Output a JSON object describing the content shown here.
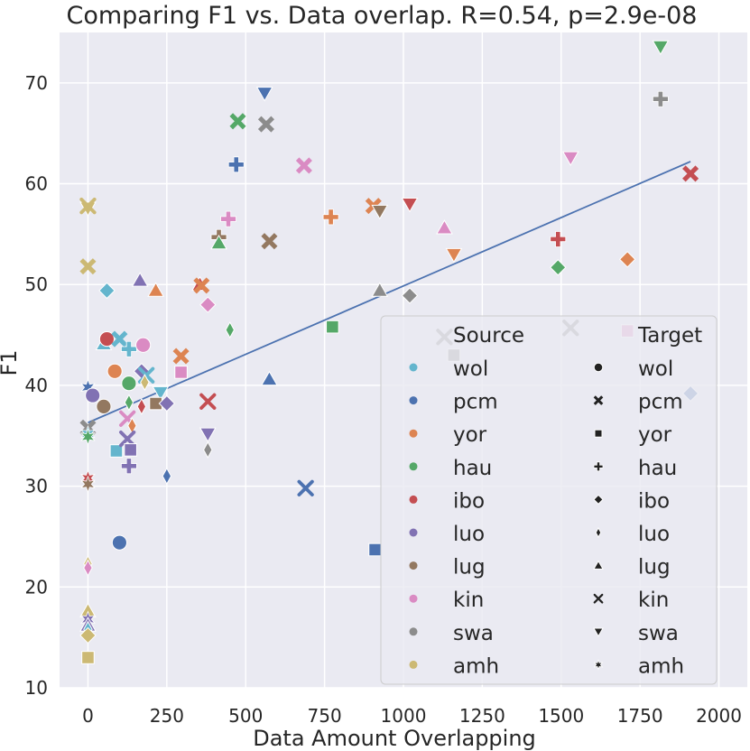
{
  "chart_data": {
    "type": "scatter",
    "title": "Comparing F1 vs. Data overlap. R=0.54, p=2.9e-08",
    "xlabel": "Data Amount Overlapping",
    "ylabel": "F1",
    "xlim": [
      -90,
      2090
    ],
    "ylim": [
      10,
      75
    ],
    "xticks": [
      0,
      250,
      500,
      750,
      1000,
      1250,
      1500,
      1750,
      2000
    ],
    "yticks": [
      10,
      20,
      30,
      40,
      50,
      60,
      70
    ],
    "xtick_labels": [
      "0",
      "250",
      "500",
      "750",
      "1000",
      "1250",
      "1500",
      "1750",
      "2000"
    ],
    "ytick_labels": [
      "10",
      "20",
      "30",
      "40",
      "50",
      "60",
      "70"
    ],
    "grid": true,
    "legend_position": "lower-right",
    "regression_line": {
      "x": [
        0,
        1910
      ],
      "y": [
        36.3,
        62.2
      ],
      "color": "#4c72b0"
    },
    "legend": {
      "source_title": "Source",
      "target_title": "Target",
      "source": [
        {
          "label": "wol",
          "color": "#64b5cd"
        },
        {
          "label": "pcm",
          "color": "#4c72b0"
        },
        {
          "label": "yor",
          "color": "#dd8452"
        },
        {
          "label": "hau",
          "color": "#55a868"
        },
        {
          "label": "ibo",
          "color": "#c44e52"
        },
        {
          "label": "luo",
          "color": "#8172b3"
        },
        {
          "label": "lug",
          "color": "#937860"
        },
        {
          "label": "kin",
          "color": "#da8bc3"
        },
        {
          "label": "swa",
          "color": "#8c8c8c"
        },
        {
          "label": "amh",
          "color": "#ccb974"
        }
      ],
      "target": [
        {
          "label": "wol",
          "marker": "circle"
        },
        {
          "label": "pcm",
          "marker": "x"
        },
        {
          "label": "yor",
          "marker": "square"
        },
        {
          "label": "hau",
          "marker": "plus"
        },
        {
          "label": "ibo",
          "marker": "diamond"
        },
        {
          "label": "luo",
          "marker": "thin-diamond"
        },
        {
          "label": "lug",
          "marker": "triangle-up"
        },
        {
          "label": "kin",
          "marker": "tri-x"
        },
        {
          "label": "swa",
          "marker": "triangle-down"
        },
        {
          "label": "amh",
          "marker": "star"
        }
      ]
    },
    "points": [
      {
        "x": 0,
        "y": 57.6,
        "source": "amh",
        "target": "swa"
      },
      {
        "x": 0,
        "y": 57.8,
        "source": "amh",
        "target": "kin"
      },
      {
        "x": 0,
        "y": 51.8,
        "source": "amh",
        "target": "pcm"
      },
      {
        "x": 0,
        "y": 39.8,
        "source": "pcm",
        "target": "amh"
      },
      {
        "x": 0,
        "y": 35.8,
        "source": "swa",
        "target": "pcm"
      },
      {
        "x": 0,
        "y": 35.2,
        "source": "wol",
        "target": "amh"
      },
      {
        "x": 0,
        "y": 34.9,
        "source": "hau",
        "target": "amh"
      },
      {
        "x": 0,
        "y": 30.8,
        "source": "ibo",
        "target": "amh"
      },
      {
        "x": 0,
        "y": 30.2,
        "source": "lug",
        "target": "amh"
      },
      {
        "x": 0,
        "y": 22.3,
        "source": "amh",
        "target": "luo"
      },
      {
        "x": 0,
        "y": 21.9,
        "source": "kin",
        "target": "luo"
      },
      {
        "x": 0,
        "y": 17.6,
        "source": "amh",
        "target": "lug"
      },
      {
        "x": 0,
        "y": 16.8,
        "source": "luo",
        "target": "amh"
      },
      {
        "x": 0,
        "y": 16.2,
        "source": "luo",
        "target": "lug"
      },
      {
        "x": 0,
        "y": 15.8,
        "source": "wol",
        "target": "luo"
      },
      {
        "x": 0,
        "y": 15.2,
        "source": "amh",
        "target": "ibo"
      },
      {
        "x": 0,
        "y": 13.0,
        "source": "amh",
        "target": "yor"
      },
      {
        "x": 60,
        "y": 49.4,
        "source": "wol",
        "target": "ibo"
      },
      {
        "x": 50,
        "y": 44.1,
        "source": "wol",
        "target": "lug"
      },
      {
        "x": 60,
        "y": 44.6,
        "source": "ibo",
        "target": "wol"
      },
      {
        "x": 100,
        "y": 44.6,
        "source": "wol",
        "target": "pcm"
      },
      {
        "x": 85,
        "y": 41.4,
        "source": "yor",
        "target": "wol"
      },
      {
        "x": 15,
        "y": 39.0,
        "source": "luo",
        "target": "wol"
      },
      {
        "x": 50,
        "y": 37.9,
        "source": "lug",
        "target": "wol"
      },
      {
        "x": 90,
        "y": 33.5,
        "source": "wol",
        "target": "yor"
      },
      {
        "x": 100,
        "y": 24.4,
        "source": "pcm",
        "target": "wol"
      },
      {
        "x": 130,
        "y": 43.6,
        "source": "wol",
        "target": "hau"
      },
      {
        "x": 130,
        "y": 40.2,
        "source": "hau",
        "target": "wol"
      },
      {
        "x": 130,
        "y": 38.3,
        "source": "hau",
        "target": "luo"
      },
      {
        "x": 125,
        "y": 36.7,
        "source": "kin",
        "target": "tri-x-kin"
      },
      {
        "x": 140,
        "y": 36.0,
        "source": "yor",
        "target": "luo"
      },
      {
        "x": 125,
        "y": 34.7,
        "source": "luo",
        "target": "kin"
      },
      {
        "x": 135,
        "y": 33.6,
        "source": "luo",
        "target": "yor"
      },
      {
        "x": 130,
        "y": 32.0,
        "source": "luo",
        "target": "hau"
      },
      {
        "x": 165,
        "y": 50.4,
        "source": "luo",
        "target": "lug"
      },
      {
        "x": 175,
        "y": 44.0,
        "source": "kin",
        "target": "wol"
      },
      {
        "x": 170,
        "y": 41.4,
        "source": "luo",
        "target": "ibo"
      },
      {
        "x": 185,
        "y": 41.0,
        "source": "wol",
        "target": "kin"
      },
      {
        "x": 180,
        "y": 40.3,
        "source": "amh",
        "target": "luo"
      },
      {
        "x": 170,
        "y": 37.9,
        "source": "ibo",
        "target": "luo"
      },
      {
        "x": 215,
        "y": 49.4,
        "source": "yor",
        "target": "lug"
      },
      {
        "x": 230,
        "y": 39.3,
        "source": "wol",
        "target": "swa"
      },
      {
        "x": 215,
        "y": 38.2,
        "source": "lug",
        "target": "yor"
      },
      {
        "x": 250,
        "y": 38.2,
        "source": "luo",
        "target": "ibo"
      },
      {
        "x": 250,
        "y": 31.0,
        "source": "pcm",
        "target": "luo"
      },
      {
        "x": 295,
        "y": 42.9,
        "source": "yor",
        "target": "pcm"
      },
      {
        "x": 295,
        "y": 41.3,
        "source": "kin",
        "target": "yor"
      },
      {
        "x": 355,
        "y": 50.0,
        "source": "ibo",
        "target": "lug"
      },
      {
        "x": 360,
        "y": 49.9,
        "source": "yor",
        "target": "pcm"
      },
      {
        "x": 380,
        "y": 48.0,
        "source": "kin",
        "target": "ibo"
      },
      {
        "x": 380,
        "y": 38.4,
        "source": "ibo",
        "target": "kin"
      },
      {
        "x": 380,
        "y": 35.2,
        "source": "luo",
        "target": "swa"
      },
      {
        "x": 380,
        "y": 33.6,
        "source": "swa",
        "target": "luo"
      },
      {
        "x": 415,
        "y": 54.7,
        "source": "lug",
        "target": "hau"
      },
      {
        "x": 415,
        "y": 54.1,
        "source": "hau",
        "target": "lug"
      },
      {
        "x": 445,
        "y": 56.5,
        "source": "kin",
        "target": "hau"
      },
      {
        "x": 450,
        "y": 45.5,
        "source": "hau",
        "target": "luo"
      },
      {
        "x": 470,
        "y": 61.9,
        "source": "pcm",
        "target": "hau"
      },
      {
        "x": 475,
        "y": 66.2,
        "source": "hau",
        "target": "pcm"
      },
      {
        "x": 560,
        "y": 69.0,
        "source": "pcm",
        "target": "swa"
      },
      {
        "x": 565,
        "y": 65.9,
        "source": "swa",
        "target": "pcm"
      },
      {
        "x": 575,
        "y": 54.3,
        "source": "lug",
        "target": "pcm"
      },
      {
        "x": 575,
        "y": 40.6,
        "source": "pcm",
        "target": "lug"
      },
      {
        "x": 685,
        "y": 61.8,
        "source": "kin",
        "target": "pcm"
      },
      {
        "x": 690,
        "y": 29.8,
        "source": "pcm",
        "target": "kin"
      },
      {
        "x": 770,
        "y": 56.7,
        "source": "yor",
        "target": "hau"
      },
      {
        "x": 775,
        "y": 45.8,
        "source": "hau",
        "target": "yor"
      },
      {
        "x": 905,
        "y": 57.8,
        "source": "yor",
        "target": "pcm"
      },
      {
        "x": 910,
        "y": 23.7,
        "source": "pcm",
        "target": "yor"
      },
      {
        "x": 925,
        "y": 57.3,
        "source": "lug",
        "target": "swa"
      },
      {
        "x": 925,
        "y": 49.4,
        "source": "swa",
        "target": "lug"
      },
      {
        "x": 1020,
        "y": 58.0,
        "source": "ibo",
        "target": "swa"
      },
      {
        "x": 1020,
        "y": 48.9,
        "source": "swa",
        "target": "ibo"
      },
      {
        "x": 1130,
        "y": 55.6,
        "source": "kin",
        "target": "lug"
      },
      {
        "x": 1130,
        "y": 44.8,
        "source": "swa",
        "target": "kin"
      },
      {
        "x": 1160,
        "y": 53.0,
        "source": "yor",
        "target": "swa"
      },
      {
        "x": 1160,
        "y": 43.0,
        "source": "swa",
        "target": "yor"
      },
      {
        "x": 1490,
        "y": 54.5,
        "source": "ibo",
        "target": "hau"
      },
      {
        "x": 1490,
        "y": 51.7,
        "source": "hau",
        "target": "ibo"
      },
      {
        "x": 1530,
        "y": 62.6,
        "source": "kin",
        "target": "swa"
      },
      {
        "x": 1530,
        "y": 45.7,
        "source": "swa",
        "target": "kin"
      },
      {
        "x": 1710,
        "y": 52.5,
        "source": "yor",
        "target": "ibo"
      },
      {
        "x": 1710,
        "y": 45.4,
        "source": "kin",
        "target": "yor"
      },
      {
        "x": 1815,
        "y": 73.6,
        "source": "hau",
        "target": "swa"
      },
      {
        "x": 1815,
        "y": 68.4,
        "source": "swa",
        "target": "hau"
      },
      {
        "x": 1910,
        "y": 61.0,
        "source": "ibo",
        "target": "pcm"
      },
      {
        "x": 1910,
        "y": 39.2,
        "source": "pcm",
        "target": "ibo"
      }
    ]
  }
}
